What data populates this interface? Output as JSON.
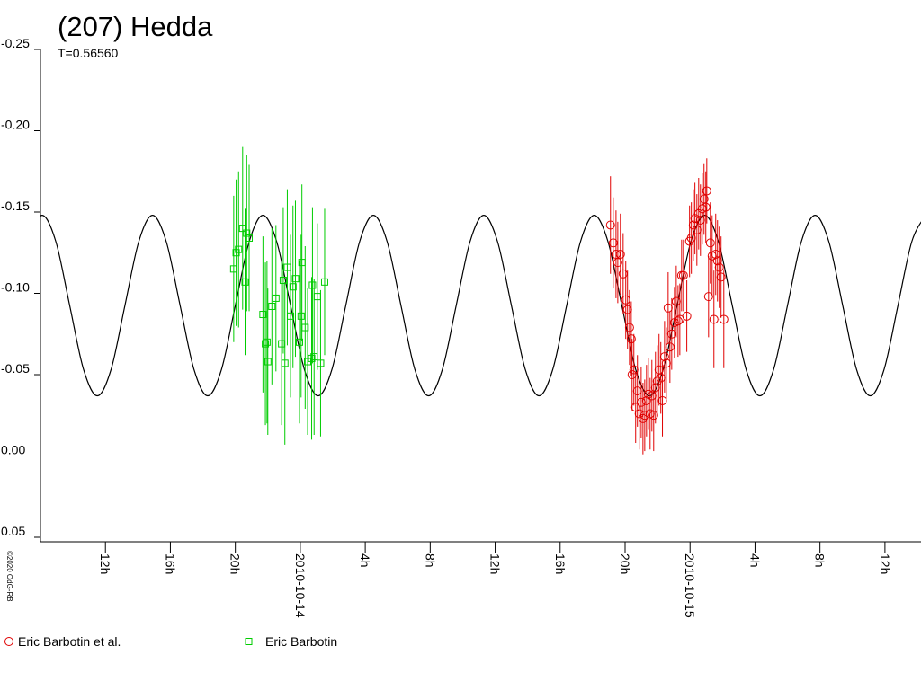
{
  "chart_data": {
    "type": "scatter",
    "title": "(207) Hedda",
    "subtitle": "T=0.56560",
    "credit": "©2020 OdG-RB",
    "xlim": [
      -16,
      38
    ],
    "ylim": [
      -0.25,
      0.05
    ],
    "xticks": [
      {
        "value": -12,
        "label": "12h"
      },
      {
        "value": -8,
        "label": "16h"
      },
      {
        "value": -4,
        "label": "20h"
      },
      {
        "value": 0,
        "label": "2010-10-14"
      },
      {
        "value": 4,
        "label": "4h"
      },
      {
        "value": 8,
        "label": "8h"
      },
      {
        "value": 12,
        "label": "12h"
      },
      {
        "value": 16,
        "label": "16h"
      },
      {
        "value": 20,
        "label": "20h"
      },
      {
        "value": 24,
        "label": "2010-10-15"
      },
      {
        "value": 28,
        "label": "4h"
      },
      {
        "value": 32,
        "label": "8h"
      },
      {
        "value": 36,
        "label": "12h"
      }
    ],
    "yticks": [
      -0.25,
      {
        "value": -0.2,
        "label": "-0.20"
      },
      -0.15,
      {
        "value": -0.1,
        "label": "-0.10"
      },
      -0.05,
      {
        "value": 0,
        "label": "0.00"
      },
      0.05
    ],
    "curve": {
      "color": "#000000",
      "x": [
        -16.75,
        -15.9,
        -15.05,
        -14.2,
        -13.35,
        -12.5,
        -11.65,
        -10.8,
        -9.95,
        -9.1,
        -8.25,
        -7.4,
        -6.55,
        -5.7,
        -4.85,
        -4.0,
        -3.15,
        -2.3,
        -1.45,
        -0.6,
        0.25,
        1.1,
        1.95,
        2.8,
        3.65,
        4.5,
        5.35,
        6.2,
        7.05,
        7.9,
        8.75,
        9.6,
        10.45,
        11.3,
        12.15,
        13.0,
        13.85,
        14.7,
        15.55,
        16.4,
        17.25,
        18.1,
        18.95,
        19.8,
        20.65,
        21.5,
        22.35,
        23.2,
        24.05,
        24.9,
        25.75,
        26.6,
        27.45,
        28.3,
        29.15,
        30.0,
        30.85,
        31.7,
        32.55,
        33.4,
        34.25,
        35.1,
        35.95,
        36.8,
        37.65,
        38.5
      ],
      "values": [
        -0.1317,
        -0.148,
        -0.1317,
        -0.0925,
        -0.0533,
        -0.037,
        -0.0533,
        -0.0925,
        -0.1317,
        -0.148,
        -0.1317,
        -0.0925,
        -0.0533,
        -0.037,
        -0.0533,
        -0.0925,
        -0.1317,
        -0.148,
        -0.1317,
        -0.0925,
        -0.0533,
        -0.037,
        -0.0533,
        -0.0925,
        -0.1317,
        -0.148,
        -0.1317,
        -0.0925,
        -0.0533,
        -0.037,
        -0.0533,
        -0.0925,
        -0.1317,
        -0.148,
        -0.1317,
        -0.0925,
        -0.0533,
        -0.037,
        -0.0533,
        -0.0925,
        -0.1317,
        -0.148,
        -0.1317,
        -0.0925,
        -0.0533,
        -0.037,
        -0.0533,
        -0.0925,
        -0.1317,
        -0.148,
        -0.1317,
        -0.0925,
        -0.0533,
        -0.037,
        -0.0533,
        -0.0925,
        -0.1317,
        -0.148,
        -0.1317,
        -0.0925,
        -0.0533,
        -0.037,
        -0.0533,
        -0.0925,
        -0.1317,
        -0.148
      ]
    },
    "series": [
      {
        "name": "Eric Barbotin et al.",
        "color": "#e00000",
        "marker": "circle",
        "x": [
          19.1,
          19.27,
          19.44,
          19.55,
          19.71,
          19.88,
          20.04,
          20.15,
          20.27,
          20.38,
          20.43,
          20.54,
          20.65,
          20.76,
          20.87,
          20.99,
          21.1,
          21.21,
          21.32,
          21.43,
          21.54,
          21.65,
          21.76,
          21.87,
          21.98,
          22.09,
          22.2,
          22.3,
          22.43,
          22.54,
          22.65,
          22.76,
          22.87,
          23.04,
          23.15,
          23.26,
          23.37,
          23.48,
          23.59,
          23.8,
          23.97,
          24.08,
          24.2,
          24.3,
          24.42,
          24.53,
          24.64,
          24.75,
          24.86,
          24.97,
          25.03,
          25.14,
          25.25,
          25.36,
          25.47,
          25.58,
          25.69,
          25.8,
          25.91,
          26.08
        ],
        "values": [
          -0.142,
          -0.131,
          -0.124,
          -0.119,
          -0.124,
          -0.112,
          -0.096,
          -0.09,
          -0.079,
          -0.072,
          -0.05,
          -0.053,
          -0.03,
          -0.04,
          -0.026,
          -0.033,
          -0.023,
          -0.025,
          -0.034,
          -0.038,
          -0.026,
          -0.037,
          -0.025,
          -0.042,
          -0.046,
          -0.053,
          -0.048,
          -0.034,
          -0.061,
          -0.057,
          -0.091,
          -0.067,
          -0.075,
          -0.082,
          -0.095,
          -0.083,
          -0.084,
          -0.111,
          -0.111,
          -0.086,
          -0.132,
          -0.134,
          -0.142,
          -0.146,
          -0.139,
          -0.149,
          -0.145,
          -0.152,
          -0.158,
          -0.153,
          -0.163,
          -0.098,
          -0.131,
          -0.123,
          -0.084,
          -0.124,
          -0.12,
          -0.116,
          -0.11,
          -0.084
        ],
        "errors": [
          0.03,
          0.028,
          0.027,
          0.025,
          0.025,
          0.025,
          0.024,
          0.024,
          0.023,
          0.023,
          0.022,
          0.022,
          0.022,
          0.022,
          0.022,
          0.022,
          0.022,
          0.022,
          0.022,
          0.022,
          0.022,
          0.022,
          0.022,
          0.022,
          0.022,
          0.022,
          0.022,
          0.022,
          0.022,
          0.022,
          0.022,
          0.022,
          0.022,
          0.022,
          0.022,
          0.022,
          0.022,
          0.022,
          0.022,
          0.022,
          0.022,
          0.022,
          0.022,
          0.022,
          0.022,
          0.022,
          0.022,
          0.022,
          0.022,
          0.022,
          0.02,
          0.025,
          0.025,
          0.025,
          0.03,
          0.025,
          0.025,
          0.025,
          0.025,
          0.03
        ]
      },
      {
        "name": "Eric Barbotin",
        "color": "#00cc00",
        "marker": "square",
        "x": [
          -4.1,
          -3.95,
          -3.8,
          -3.55,
          -3.3,
          -3.15,
          -3.4,
          -2.3,
          -2.15,
          -2.05,
          -2.0,
          -1.75,
          -1.5,
          -1.15,
          -1.05,
          -0.95,
          -0.8,
          -0.6,
          -0.45,
          -0.3,
          -0.05,
          0.1,
          0.3,
          0.45,
          0.75,
          0.85,
          1.05,
          1.25,
          1.5,
          0.05,
          0.7
        ],
        "values": [
          -0.115,
          -0.125,
          -0.127,
          -0.14,
          -0.137,
          -0.134,
          -0.107,
          -0.087,
          -0.069,
          -0.07,
          -0.058,
          -0.092,
          -0.097,
          -0.069,
          -0.108,
          -0.057,
          -0.116,
          -0.086,
          -0.104,
          -0.109,
          -0.07,
          -0.119,
          -0.079,
          -0.058,
          -0.105,
          -0.061,
          -0.098,
          -0.057,
          -0.107,
          -0.086,
          -0.06
        ],
        "errors": [
          0.045,
          0.045,
          0.048,
          0.05,
          0.048,
          0.045,
          0.045,
          0.048,
          0.05,
          0.05,
          0.045,
          0.048,
          0.045,
          0.05,
          0.045,
          0.05,
          0.048,
          0.05,
          0.05,
          0.048,
          0.05,
          0.048,
          0.05,
          0.045,
          0.048,
          0.048,
          0.045,
          0.045,
          0.045,
          0.05,
          0.05
        ]
      }
    ]
  }
}
